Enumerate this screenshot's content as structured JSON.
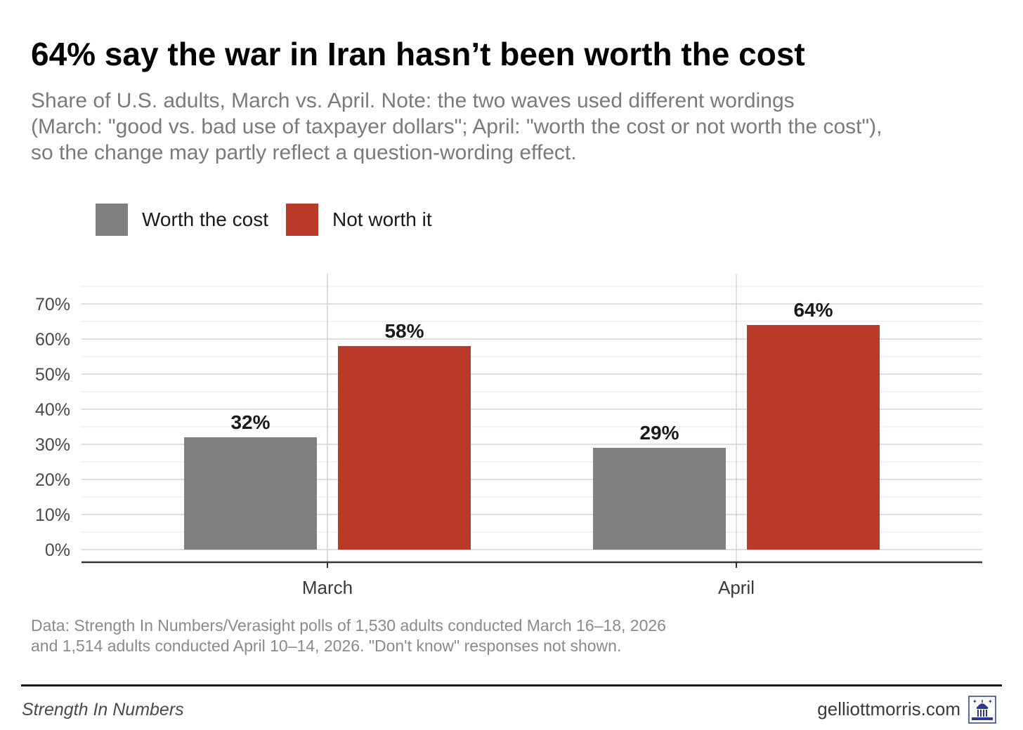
{
  "header": {
    "title": "64% say the war in Iran hasn’t been worth the cost",
    "subtitle_lines": [
      "Share of U.S. adults, March vs. April. Note: the two waves used different wordings",
      "(March: \"good vs. bad use of taxpayer dollars\"; April: \"worth the cost or not worth the cost\"),",
      "so the change may partly reflect a question-wording effect."
    ]
  },
  "legend": {
    "items": [
      {
        "label": "Worth the cost",
        "color": "#808080"
      },
      {
        "label": "Not worth it",
        "color": "#b93a29"
      }
    ]
  },
  "chart_data": {
    "type": "bar",
    "title": "64% say the war in Iran hasn’t been worth the cost",
    "categories": [
      "March",
      "April"
    ],
    "series": [
      {
        "name": "Worth the cost",
        "values": [
          32,
          29
        ],
        "labels": [
          "32%",
          "29%"
        ],
        "color": "#808080"
      },
      {
        "name": "Not worth it",
        "values": [
          58,
          64
        ],
        "labels": [
          "58%",
          "64%"
        ],
        "color": "#b93a29"
      }
    ],
    "ylim": [
      0,
      75
    ],
    "yticks": [
      0,
      10,
      20,
      30,
      40,
      50,
      60,
      70
    ],
    "ytick_labels": [
      "0%",
      "10%",
      "20%",
      "30%",
      "40%",
      "50%",
      "60%",
      "70%"
    ],
    "xlabel": "",
    "ylabel": "",
    "legend_position": "top-left",
    "grid": true
  },
  "caption": {
    "lines": [
      "Data: Strength In Numbers/Verasight polls of 1,530 adults conducted March 16–18, 2026",
      "and 1,514 adults conducted April 10–14, 2026. \"Don't know\" responses not shown."
    ]
  },
  "footer": {
    "left": "Strength In Numbers",
    "right": "gelliottmorris.com",
    "logo_icon": "capitol-logo-icon",
    "logo_color": "#2b3a8c"
  }
}
